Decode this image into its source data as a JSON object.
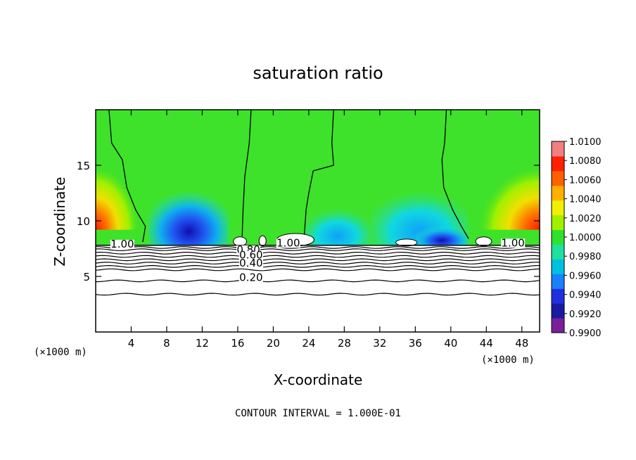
{
  "chart_data": {
    "type": "heatmap",
    "title": "saturation ratio",
    "xlabel": "X-coordinate",
    "ylabel": "Z-coordinate",
    "x_unit": "(×1000 m)",
    "z_unit": "(×1000 m)",
    "xlim": [
      0,
      50
    ],
    "ylim": [
      0,
      20
    ],
    "x_ticks": [
      4,
      8,
      12,
      16,
      20,
      24,
      28,
      32,
      36,
      40,
      44,
      48
    ],
    "y_ticks": [
      5,
      10,
      15
    ],
    "grid": false,
    "colorbar": {
      "min": 0.99,
      "max": 1.01,
      "labels": [
        "1.0100",
        "1.0080",
        "1.0060",
        "1.0040",
        "1.0020",
        "1.0000",
        "0.9980",
        "0.9960",
        "0.9940",
        "0.9920",
        "0.9900"
      ],
      "colors": [
        "#7a1f9a",
        "#1a1aa0",
        "#2030e0",
        "#1a80ff",
        "#00c0e0",
        "#20e0a0",
        "#30e030",
        "#a0f000",
        "#f0f000",
        "#ffb000",
        "#ff6000",
        "#ff2000",
        "#f08080"
      ]
    },
    "contour_interval_text": "CONTOUR INTERVAL = 1.000E-01",
    "contour_labels": [
      {
        "text": "1.00",
        "x": 3.0,
        "z": 7.6
      },
      {
        "text": "1.00",
        "x": 21.7,
        "z": 7.7
      },
      {
        "text": "1.00",
        "x": 47.0,
        "z": 7.7
      },
      {
        "text": "0.80",
        "x": 17.2,
        "z": 7.1
      },
      {
        "text": "0.60",
        "x": 17.5,
        "z": 6.6
      },
      {
        "text": "0.40",
        "x": 17.5,
        "z": 5.9
      },
      {
        "text": "0.20",
        "x": 17.5,
        "z": 4.6
      }
    ],
    "contour_levels_z": [
      3.4,
      4.6,
      5.6,
      5.9,
      6.2,
      6.5,
      6.8,
      7.1,
      7.4,
      7.6
    ],
    "saturated_boundary_z": 7.8
  }
}
